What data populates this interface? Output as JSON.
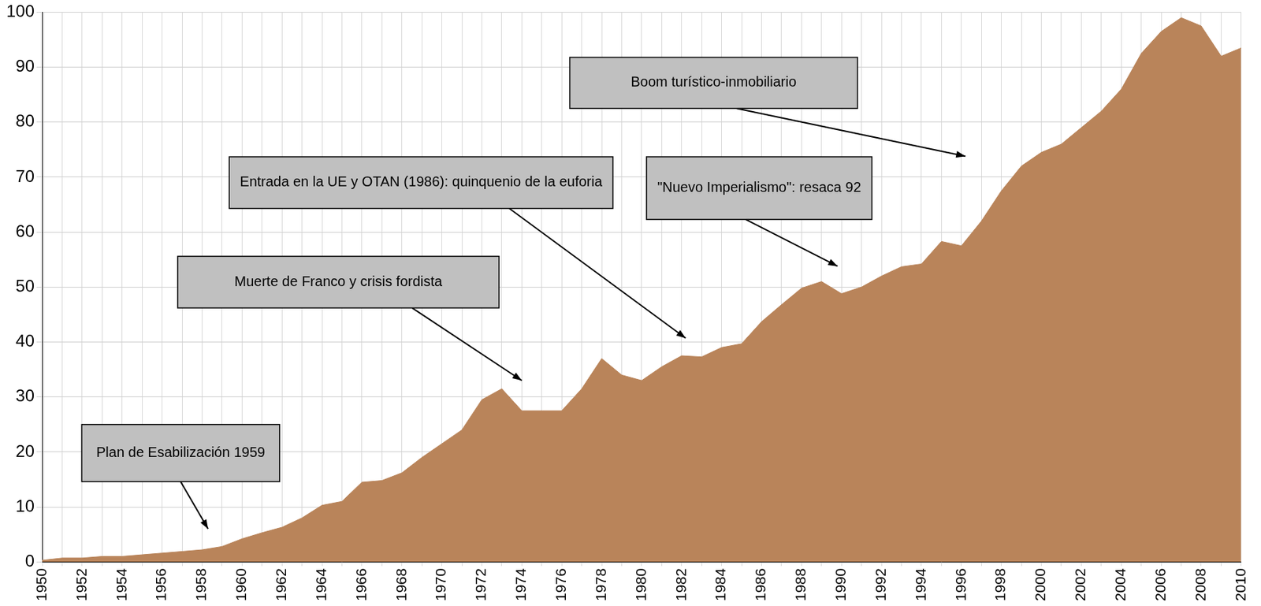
{
  "chart_data": {
    "type": "area",
    "categories": [
      "1950",
      null,
      "1952",
      null,
      "1954",
      null,
      "1956",
      null,
      "1958",
      null,
      "1960",
      null,
      "1962",
      null,
      "1964",
      null,
      "1966",
      null,
      "1968",
      null,
      "1970",
      null,
      "1972",
      null,
      "1974",
      null,
      "1976",
      null,
      "1978",
      null,
      "1980",
      null,
      "1982",
      null,
      "1984",
      null,
      "1986",
      null,
      "1988",
      null,
      "1990",
      null,
      "1992",
      null,
      "1994",
      null,
      "1996",
      null,
      "1998",
      null,
      "2000",
      null,
      "2002",
      null,
      "2004",
      null,
      "2006",
      null,
      "2008",
      null,
      "2010"
    ],
    "values": [
      0.3,
      0.7,
      0.7,
      1,
      1,
      1.3,
      1.6,
      1.9,
      2.2,
      2.8,
      4.2,
      5.3,
      6.3,
      8,
      10.3,
      11,
      14.5,
      14.8,
      16.2,
      19,
      21.5,
      24,
      29.5,
      31.5,
      27.5,
      27.5,
      27.5,
      31.5,
      37,
      34,
      33,
      35.5,
      37.5,
      37.3,
      39,
      39.7,
      43.7,
      46.8,
      49.8,
      51,
      48.8,
      50,
      52,
      53.7,
      54.2,
      58.3,
      57.5,
      62,
      67.5,
      72,
      74.5,
      76,
      79,
      82,
      86,
      92.5,
      96.5,
      99,
      97.5,
      92,
      93.5
    ],
    "color": "#b9845a",
    "ylim": [
      0,
      100
    ],
    "yticks": [
      0,
      10,
      20,
      30,
      40,
      50,
      60,
      70,
      80,
      90,
      100
    ],
    "grid": true,
    "annotations": [
      {
        "text": "Plan de Esabilización 1959",
        "x": 1958.3,
        "y": 6
      },
      {
        "text": "Muerte de Franco y crisis fordista",
        "x": 1974,
        "y": 33
      },
      {
        "text": "Entrada en la UE y OTAN (1986): quinquenio de la euforia",
        "x": 1982.2,
        "y": 40.7
      },
      {
        "text": "\"Nuevo Imperialismo\": resaca 92",
        "x": 1989.8,
        "y": 53.8
      },
      {
        "text": "Boom turístico-inmobiliario",
        "x": 1996.2,
        "y": 73.8
      }
    ]
  }
}
